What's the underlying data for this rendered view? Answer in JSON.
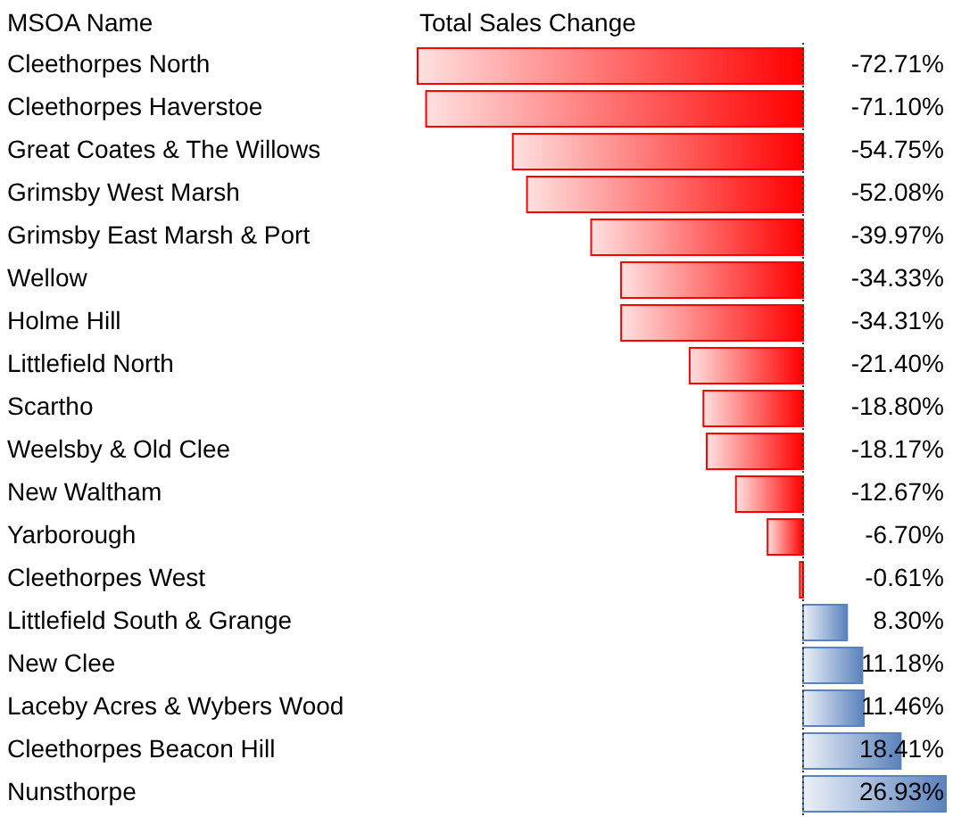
{
  "chart_data": {
    "type": "bar",
    "orientation": "horizontal",
    "ylabel": "MSOA Name",
    "xlabel": "Total Sales Change",
    "categories": [
      "Cleethorpes North",
      "Cleethorpes Haverstoe",
      "Great Coates & The Willows",
      "Grimsby West Marsh",
      "Grimsby East Marsh & Port",
      "Wellow",
      "Holme Hill",
      "Littlefield North",
      "Scartho",
      "Weelsby & Old Clee",
      "New Waltham",
      "Yarborough",
      "Cleethorpes West",
      "Littlefield South & Grange",
      "New Clee",
      "Laceby Acres & Wybers Wood",
      "Cleethorpes Beacon Hill",
      "Nunsthorpe"
    ],
    "values": [
      -72.71,
      -71.1,
      -54.75,
      -52.08,
      -39.97,
      -34.33,
      -34.31,
      -21.4,
      -18.8,
      -18.17,
      -12.67,
      -6.7,
      -0.61,
      8.3,
      11.18,
      11.46,
      18.41,
      26.93
    ],
    "value_labels": [
      "-72.71%",
      "-71.10%",
      "-54.75%",
      "-52.08%",
      "-39.97%",
      "-34.33%",
      "-34.31%",
      "-21.40%",
      "-18.80%",
      "-18.17%",
      "-12.67%",
      "-6.70%",
      "-0.61%",
      "8.30%",
      "11.18%",
      "11.46%",
      "18.41%",
      "26.93%"
    ],
    "ref_lines": [
      {
        "axis": "x",
        "value": 0,
        "line_style": "dotted",
        "color": "#333333"
      }
    ],
    "colors": [
      "#ff0000",
      "#ff0000",
      "#ff0000",
      "#ff0000",
      "#ff0000",
      "#ff0000",
      "#ff0000",
      "#ff0000",
      "#ff0000",
      "#ff0000",
      "#ff0000",
      "#ff0000",
      "#ff0000",
      "#5b82bd",
      "#5b82bd",
      "#5b82bd",
      "#5b82bd",
      "#5b82bd"
    ]
  }
}
